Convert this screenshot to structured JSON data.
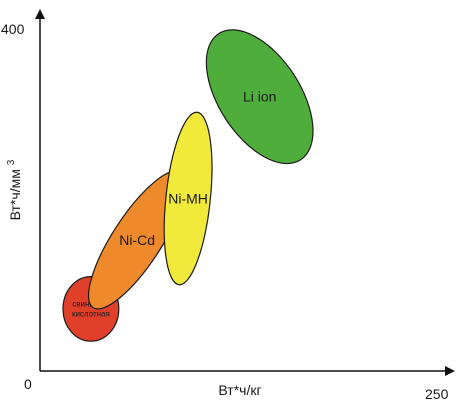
{
  "chart_data": {
    "type": "scatter",
    "xlabel": "Вт*ч/кг",
    "ylabel": "Вт*ч/мм",
    "ylabel_superscript": "3",
    "xlim": [
      0,
      250
    ],
    "ylim": [
      0,
      400
    ],
    "x_tick_labels": [
      "250"
    ],
    "y_tick_labels": [
      "400"
    ],
    "origin_label": "0",
    "grid": false,
    "legend": "none",
    "regions": [
      {
        "name": "Свинцово-кислотная",
        "label_lines": [
          "свинцово-",
          "кислотная"
        ],
        "color": "#e0402a",
        "x_range": [
          15,
          50
        ],
        "y_range": [
          35,
          110
        ],
        "x_center": 32,
        "y_center": 72
      },
      {
        "name": "Ni-Cd",
        "label_lines": [
          "Ni-Cd"
        ],
        "color": "#ee8a2c",
        "x_range": [
          37,
          85
        ],
        "y_range": [
          70,
          235
        ],
        "x_center": 61,
        "y_center": 152
      },
      {
        "name": "Ni-MH",
        "label_lines": [
          "Ni-MH"
        ],
        "color": "#f2ea3a",
        "x_range": [
          78,
          108
        ],
        "y_range": [
          100,
          300
        ],
        "x_center": 93,
        "y_center": 200
      },
      {
        "name": "Li ion",
        "label_lines": [
          "Li ion"
        ],
        "color": "#4fae3b",
        "x_range": [
          105,
          172
        ],
        "y_range": [
          240,
          395
        ],
        "x_center": 138,
        "y_center": 318
      }
    ]
  }
}
